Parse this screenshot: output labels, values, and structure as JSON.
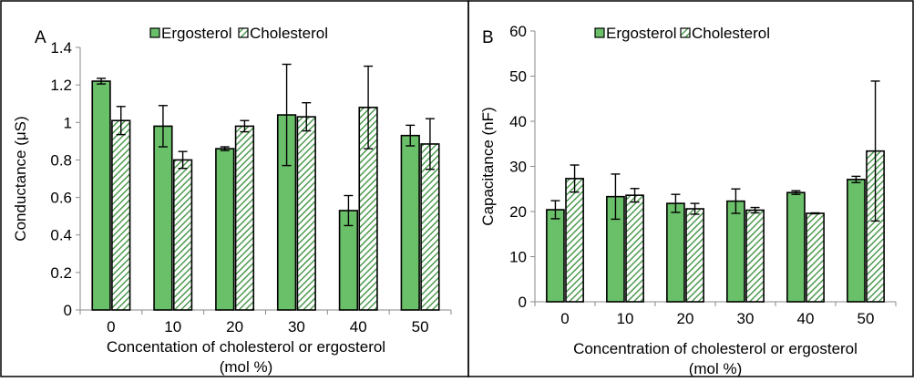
{
  "chart_data": [
    {
      "type": "bar",
      "panel_label": "A",
      "categories": [
        "0",
        "10",
        "20",
        "30",
        "40",
        "50"
      ],
      "ylabel": "Conductance (μS)",
      "xlabel_lines": [
        "Concentation of cholesterol or ergosterol",
        "(mol %)"
      ],
      "ylim": [
        0,
        1.4
      ],
      "yticks": [
        "0",
        "0.2",
        "0.4",
        "0.6",
        "0.8",
        "1",
        "1.2",
        "1.4"
      ],
      "ytick_values": [
        0,
        0.2,
        0.4,
        0.6,
        0.8,
        1.0,
        1.2,
        1.4
      ],
      "grid": false,
      "legend_position": "top",
      "series": [
        {
          "name": "Ergosterol",
          "color": "#6ABF69",
          "pattern": "solid",
          "values": [
            1.22,
            0.98,
            0.86,
            1.04,
            0.53,
            0.93
          ],
          "errors": [
            0.015,
            0.11,
            0.01,
            0.27,
            0.08,
            0.055
          ]
        },
        {
          "name": "Cholesterol",
          "color": "#5A9E5B",
          "pattern": "hatched",
          "values": [
            1.01,
            0.8,
            0.98,
            1.03,
            1.08,
            0.885
          ],
          "errors": [
            0.075,
            0.045,
            0.03,
            0.075,
            0.22,
            0.135
          ]
        }
      ]
    },
    {
      "type": "bar",
      "panel_label": "B",
      "categories": [
        "0",
        "10",
        "20",
        "30",
        "40",
        "50"
      ],
      "ylabel": "Capacitance (nF)",
      "xlabel_lines": [
        "Concentration of cholesterol or ergosterol",
        "(mol %)"
      ],
      "ylim": [
        0,
        60
      ],
      "yticks": [
        "0",
        "10",
        "20",
        "30",
        "40",
        "50",
        "60"
      ],
      "ytick_values": [
        0,
        10,
        20,
        30,
        40,
        50,
        60
      ],
      "grid": false,
      "legend_position": "top",
      "series": [
        {
          "name": "Ergosterol",
          "color": "#6ABF69",
          "pattern": "solid",
          "values": [
            20.4,
            23.3,
            21.8,
            22.3,
            24.2,
            27.1
          ],
          "errors": [
            2.0,
            5.0,
            2.0,
            2.7,
            0.4,
            0.7
          ]
        },
        {
          "name": "Cholesterol",
          "color": "#5A9E5B",
          "pattern": "hatched",
          "values": [
            27.3,
            23.6,
            20.6,
            20.3,
            19.6,
            33.4
          ],
          "errors": [
            3.0,
            1.5,
            1.2,
            0.6,
            0.1,
            15.5
          ]
        }
      ]
    }
  ]
}
